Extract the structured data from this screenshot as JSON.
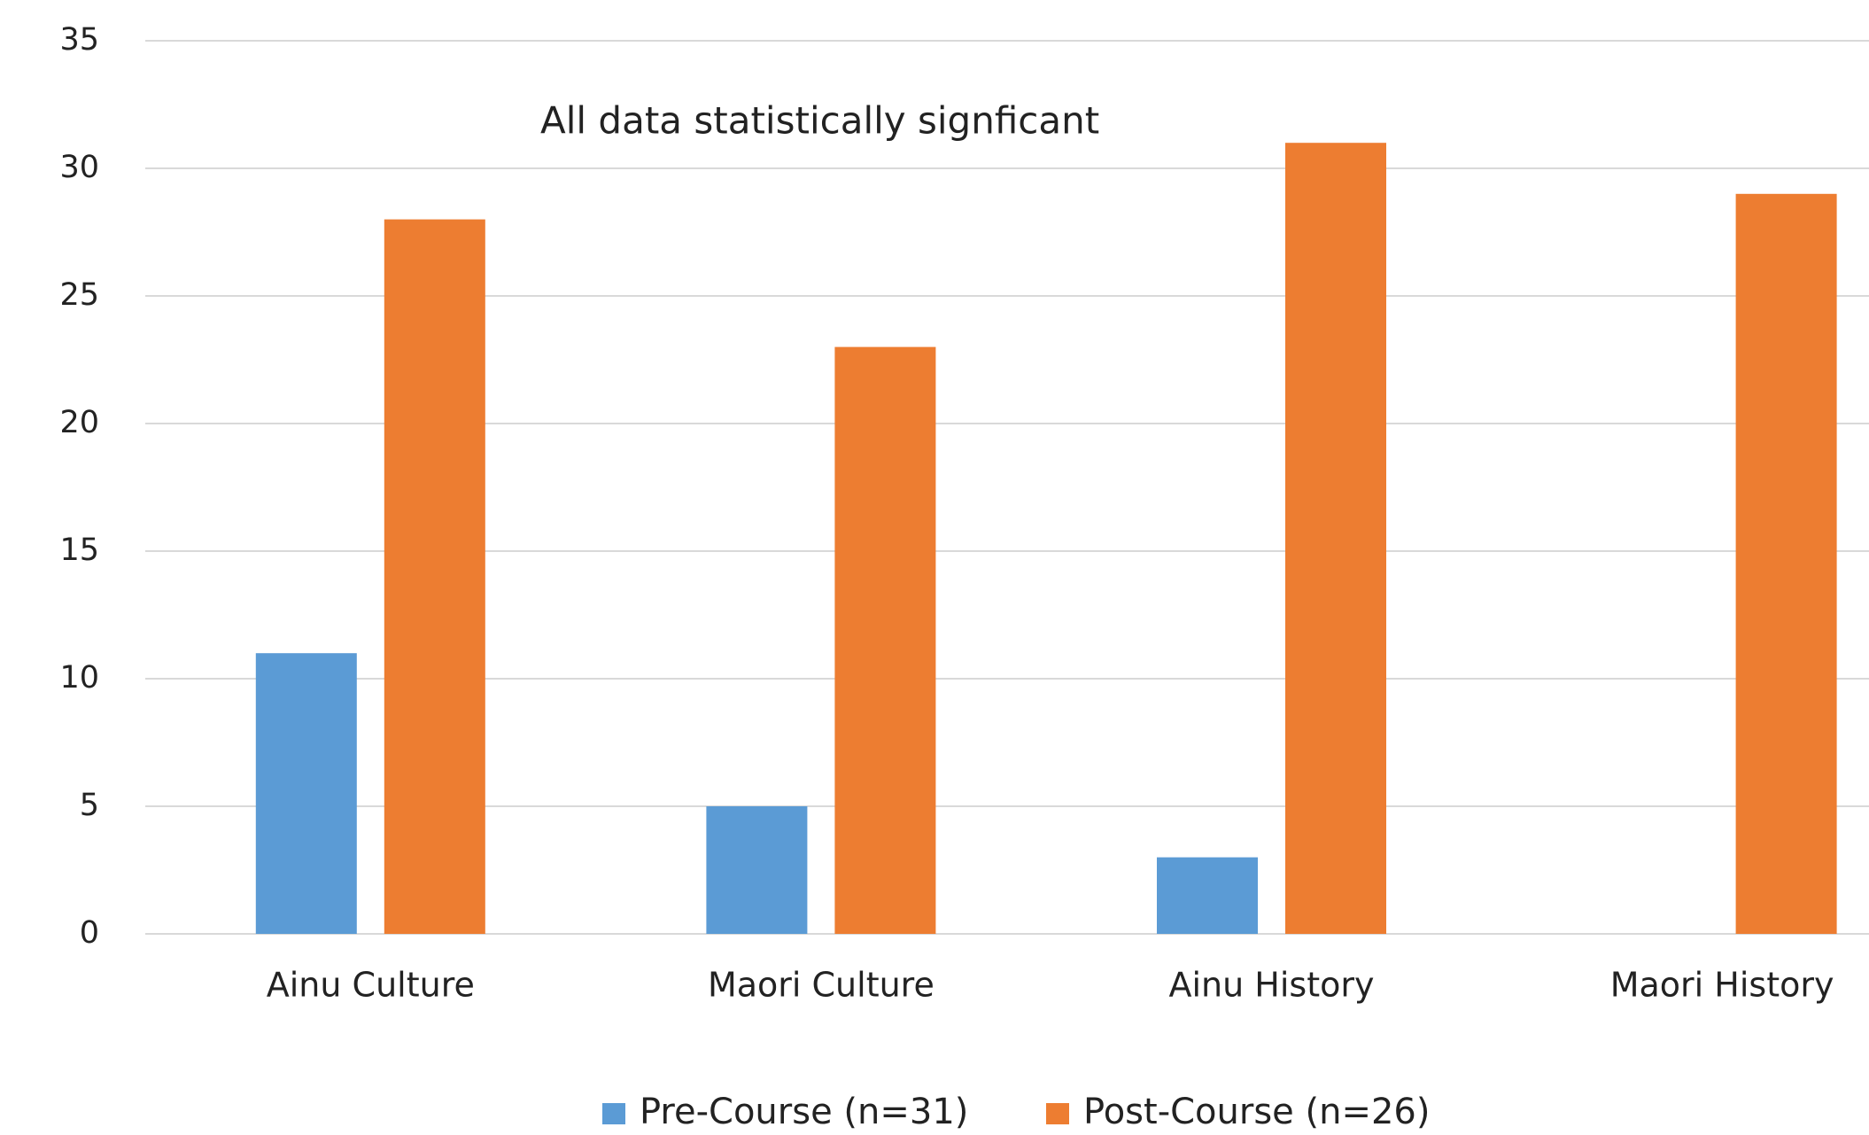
{
  "chart_data": {
    "type": "bar",
    "annotations": [
      "All data statistically signficant"
    ],
    "categories": [
      "Ainu Culture",
      "Maori Culture",
      "Ainu History",
      "Maori History"
    ],
    "series": [
      {
        "name": "Pre-Course (n=31)",
        "color": "#5b9bd5",
        "values": [
          11,
          5,
          3,
          0
        ]
      },
      {
        "name": "Post-Course (n=26)",
        "color": "#ed7d31",
        "values": [
          28,
          23,
          31,
          29
        ]
      }
    ],
    "ylim": [
      0,
      35
    ],
    "yticks": [
      0,
      5,
      10,
      15,
      20,
      25,
      30,
      35
    ],
    "grid": true,
    "legend": "bottom"
  }
}
